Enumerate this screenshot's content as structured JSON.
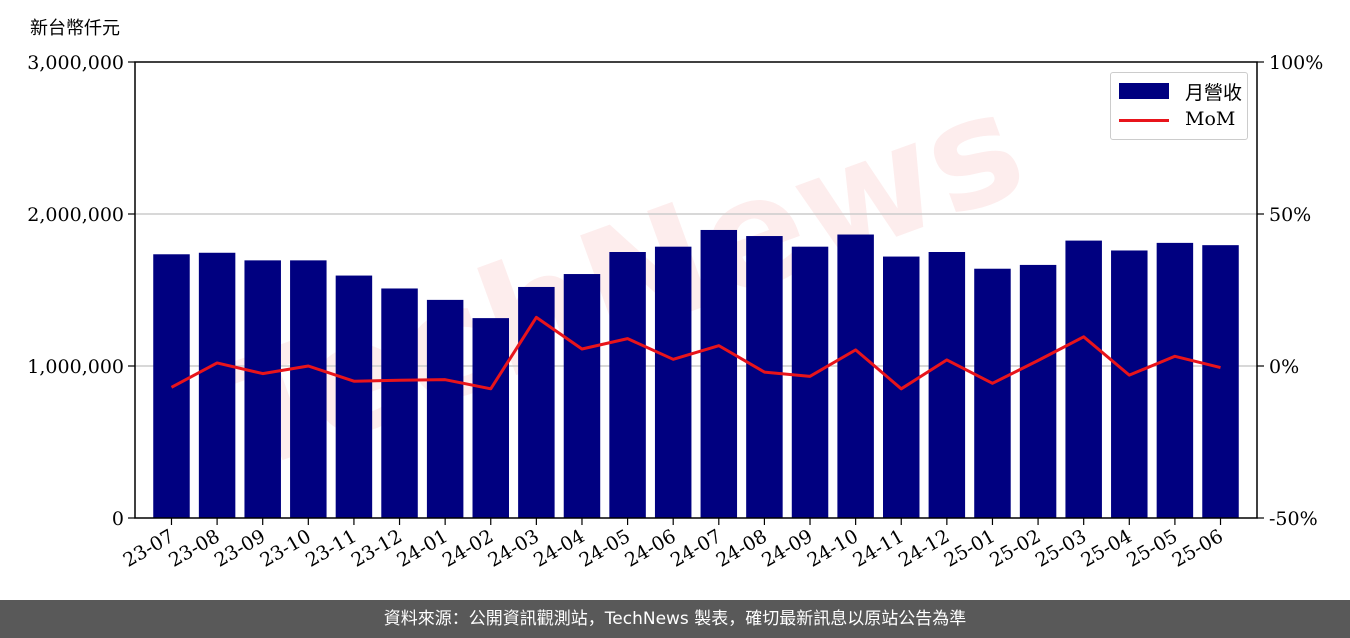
{
  "unit_label": "新台幣仟元",
  "footer_text": "資料來源：公開資訊觀測站，TechNews 製表，確切最新訊息以原站公告為準",
  "watermark": "TechNews",
  "colors": {
    "bar": "#000080",
    "line": "#e8141b",
    "footer_bg": "#595959",
    "grid": "#cccccc"
  },
  "chart_data": {
    "type": "bar",
    "categories": [
      "23-07",
      "23-08",
      "23-09",
      "23-10",
      "23-11",
      "23-12",
      "24-01",
      "24-02",
      "24-03",
      "24-04",
      "24-05",
      "24-06",
      "24-07",
      "24-08",
      "24-09",
      "24-10",
      "24-11",
      "24-12",
      "25-01",
      "25-02",
      "25-03",
      "25-04",
      "25-05",
      "25-06"
    ],
    "series": [
      {
        "name": "月營收",
        "type": "bar",
        "axis": "left",
        "values": [
          1735000,
          1745000,
          1695000,
          1695000,
          1595000,
          1510000,
          1435000,
          1315000,
          1520000,
          1605000,
          1750000,
          1785000,
          1895000,
          1855000,
          1785000,
          1865000,
          1720000,
          1750000,
          1640000,
          1665000,
          1825000,
          1760000,
          1810000,
          1795000
        ]
      },
      {
        "name": "MoM",
        "type": "line",
        "axis": "right",
        "values": [
          -7.0,
          1.0,
          -2.5,
          0.0,
          -5.0,
          -4.7,
          -4.5,
          -7.5,
          16.0,
          5.6,
          9.0,
          2.2,
          6.7,
          -2.0,
          -3.4,
          5.3,
          -7.5,
          2.0,
          -5.7,
          1.8,
          9.6,
          -3.0,
          3.2,
          -0.5
        ]
      }
    ],
    "left_axis": {
      "ylim": [
        0,
        3000000
      ],
      "ticks": [
        "0",
        "1,000,000",
        "2,000,000",
        "3,000,000"
      ]
    },
    "right_axis": {
      "ylim": [
        -50,
        100
      ],
      "ticks": [
        "-50%",
        "0%",
        "50%",
        "100%"
      ]
    },
    "grid": true,
    "legend_position": "top-right"
  }
}
